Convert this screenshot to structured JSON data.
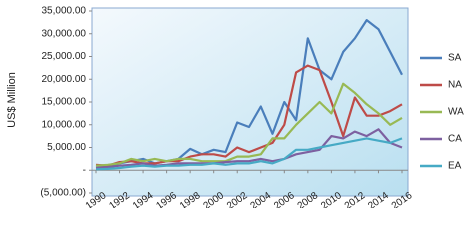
{
  "chart_data": {
    "type": "line",
    "y_label": "US$ Million",
    "x": [
      1990,
      1991,
      1992,
      1993,
      1994,
      1995,
      1996,
      1997,
      1998,
      1999,
      2000,
      2001,
      2002,
      2003,
      2004,
      2005,
      2006,
      2007,
      2008,
      2009,
      2010,
      2011,
      2012,
      2013,
      2014,
      2015,
      2016
    ],
    "series": [
      {
        "name": "SA",
        "color": "#4a7ebb",
        "values": [
          1000,
          800,
          1500,
          2000,
          2500,
          1500,
          2000,
          2500,
          4700,
          3500,
          4500,
          4000,
          10500,
          9500,
          14000,
          8000,
          15000,
          11000,
          29000,
          22000,
          20000,
          26000,
          29000,
          33000,
          31000,
          26000,
          21000
        ]
      },
      {
        "name": "NA",
        "color": "#be4b48",
        "values": [
          1200,
          1000,
          1800,
          2000,
          1500,
          1500,
          2000,
          2000,
          3000,
          3500,
          3500,
          3000,
          5000,
          4000,
          5000,
          6000,
          10000,
          21500,
          23000,
          22000,
          15000,
          7500,
          16000,
          12000,
          12000,
          13000,
          14500
        ]
      },
      {
        "name": "WA",
        "color": "#98b954",
        "values": [
          1000,
          1200,
          1500,
          2500,
          2000,
          2500,
          2000,
          2500,
          2500,
          2000,
          2000,
          2000,
          3000,
          3000,
          3500,
          7000,
          7000,
          10000,
          12500,
          15000,
          12500,
          19000,
          17000,
          14500,
          12500,
          10000,
          11500
        ]
      },
      {
        "name": "CA",
        "color": "#7d60a0",
        "values": [
          500,
          700,
          1000,
          1200,
          1500,
          1000,
          1200,
          1500,
          1500,
          1500,
          1500,
          1800,
          2000,
          2000,
          2500,
          2000,
          2500,
          3500,
          4000,
          4500,
          7500,
          7000,
          8500,
          7500,
          9000,
          6000,
          5000
        ]
      },
      {
        "name": "EA",
        "color": "#46aac5",
        "values": [
          200,
          300,
          500,
          800,
          1000,
          800,
          1000,
          1000,
          1200,
          1200,
          1500,
          1200,
          1500,
          1500,
          2000,
          1500,
          2500,
          4500,
          4500,
          5000,
          5500,
          6000,
          6500,
          7000,
          6500,
          6000,
          7000
        ]
      }
    ],
    "xlim": [
      1990,
      2016
    ],
    "xticks": [
      1990,
      1992,
      1994,
      1996,
      1998,
      2000,
      2002,
      2004,
      2006,
      2008,
      2010,
      2012,
      2014,
      2016
    ],
    "ylim": [
      -5000,
      35000
    ],
    "yticks": [
      {
        "value": -5000,
        "label": "(5,000.00)"
      },
      {
        "value": 0,
        "label": "-"
      },
      {
        "value": 5000,
        "label": "5,000.00"
      },
      {
        "value": 10000,
        "label": "10,000.00"
      },
      {
        "value": 15000,
        "label": "15,000.00"
      },
      {
        "value": 20000,
        "label": "20,000.00"
      },
      {
        "value": 25000,
        "label": "25,000.00"
      },
      {
        "value": 30000,
        "label": "30,000.00"
      },
      {
        "value": 35000,
        "label": "35,000.00"
      }
    ],
    "grid": false,
    "legend": "right"
  }
}
